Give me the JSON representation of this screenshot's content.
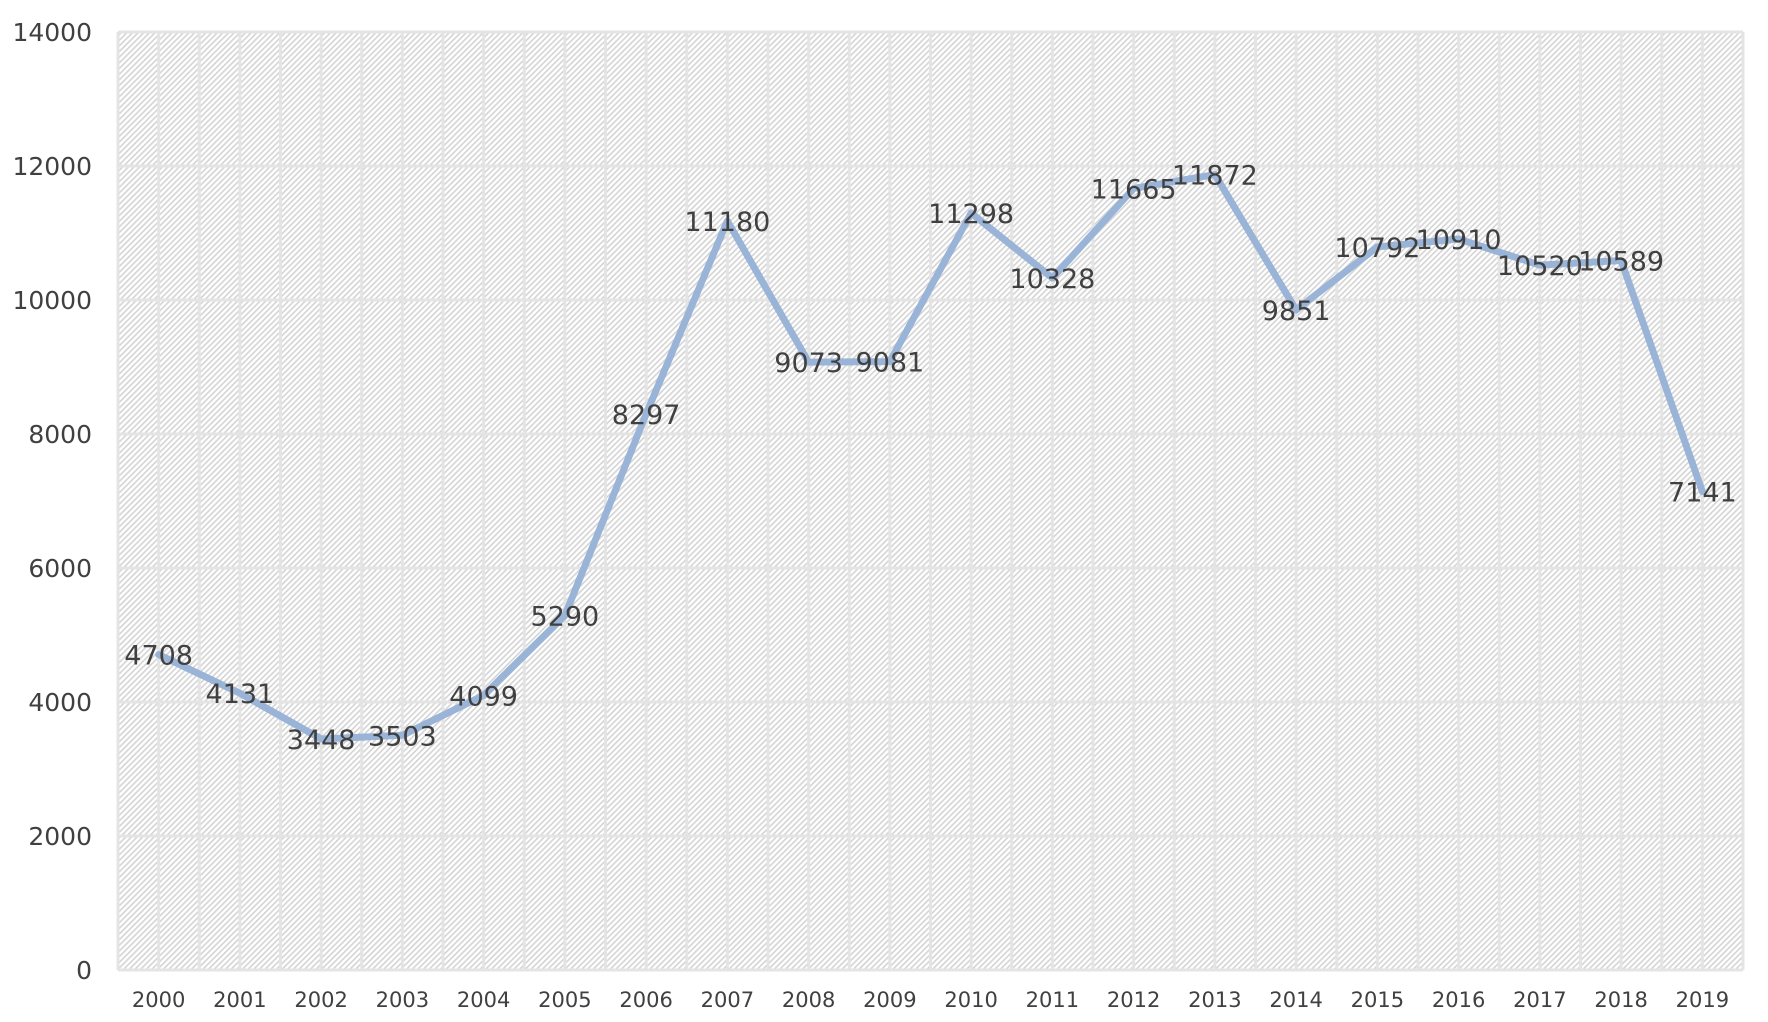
{
  "chart_data": {
    "type": "line",
    "title": "",
    "xlabel": "",
    "ylabel": "",
    "categories": [
      "2000",
      "2001",
      "2002",
      "2003",
      "2004",
      "2005",
      "2006",
      "2007",
      "2008",
      "2009",
      "2010",
      "2011",
      "2012",
      "2013",
      "2014",
      "2015",
      "2016",
      "2017",
      "2018",
      "2019"
    ],
    "series": [
      {
        "values": [
          4708,
          4131,
          3448,
          3503,
          4099,
          5290,
          8297,
          11180,
          9073,
          9081,
          11298,
          10328,
          11665,
          11872,
          9851,
          10792,
          10910,
          10520,
          10589,
          7141
        ]
      }
    ],
    "ylim": [
      0,
      14000
    ],
    "yticks": [
      0,
      2000,
      4000,
      6000,
      8000,
      10000,
      12000,
      14000
    ],
    "grid": true,
    "data_labels": true,
    "legend": "none",
    "colors": {
      "line": "#9ab4d8",
      "label": "#404040",
      "grid": "#e4e4e4",
      "hatch": "#d4d4d4"
    }
  }
}
